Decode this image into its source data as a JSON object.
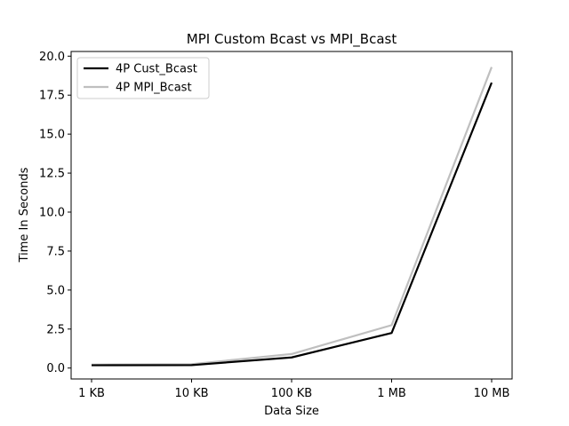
{
  "chart_data": {
    "type": "line",
    "title": "MPI Custom Bcast vs MPI_Bcast",
    "xlabel": "Data Size",
    "ylabel": "Time In Seconds",
    "categories": [
      "1 KB",
      "10 KB",
      "100 KB",
      "1 MB",
      "10 MB"
    ],
    "ylim": [
      -0.7,
      20.3
    ],
    "yticks": [
      0.0,
      2.5,
      5.0,
      7.5,
      10.0,
      12.5,
      15.0,
      17.5,
      20.0
    ],
    "ytick_labels": [
      "0.0",
      "2.5",
      "5.0",
      "7.5",
      "10.0",
      "12.5",
      "15.0",
      "17.5",
      "20.0"
    ],
    "grid": false,
    "legend_position": "top-left",
    "series": [
      {
        "name": "4P Cust_Bcast",
        "color": "#000000",
        "values": [
          0.18,
          0.19,
          0.68,
          2.25,
          18.3
        ]
      },
      {
        "name": "4P MPI_Bcast",
        "color": "#bfbfbf",
        "values": [
          0.22,
          0.25,
          0.9,
          2.75,
          19.3
        ]
      }
    ]
  }
}
